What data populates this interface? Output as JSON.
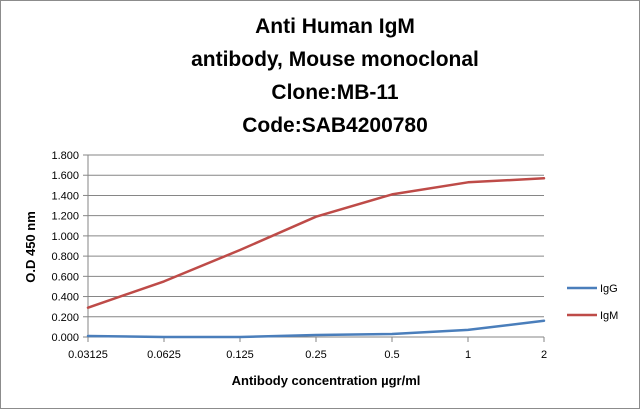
{
  "chart_data": {
    "type": "line",
    "title_lines": [
      "Anti Human IgM",
      "antibody, Mouse monoclonal",
      "Clone:MB-11",
      "Code:SAB4200780"
    ],
    "xlabel": "Antibody concentration µgr/ml",
    "ylabel": "O.D 450 nm",
    "x_scale": "log2",
    "categories": [
      "0.03125",
      "0.0625",
      "0.125",
      "0.25",
      "0.5",
      "1",
      "2"
    ],
    "y_ticks": [
      "0.000",
      "0.200",
      "0.400",
      "0.600",
      "0.800",
      "1.000",
      "1.200",
      "1.400",
      "1.600",
      "1.800"
    ],
    "ylim": [
      0,
      1.8
    ],
    "grid": true,
    "legend_position": "right",
    "series": [
      {
        "name": "IgG",
        "color": "#4a7ebb",
        "values": [
          0.01,
          0.0,
          0.0,
          0.02,
          0.03,
          0.07,
          0.16
        ]
      },
      {
        "name": "IgM",
        "color": "#be4b48",
        "values": [
          0.29,
          0.55,
          0.86,
          1.19,
          1.41,
          1.53,
          1.57
        ]
      }
    ]
  }
}
